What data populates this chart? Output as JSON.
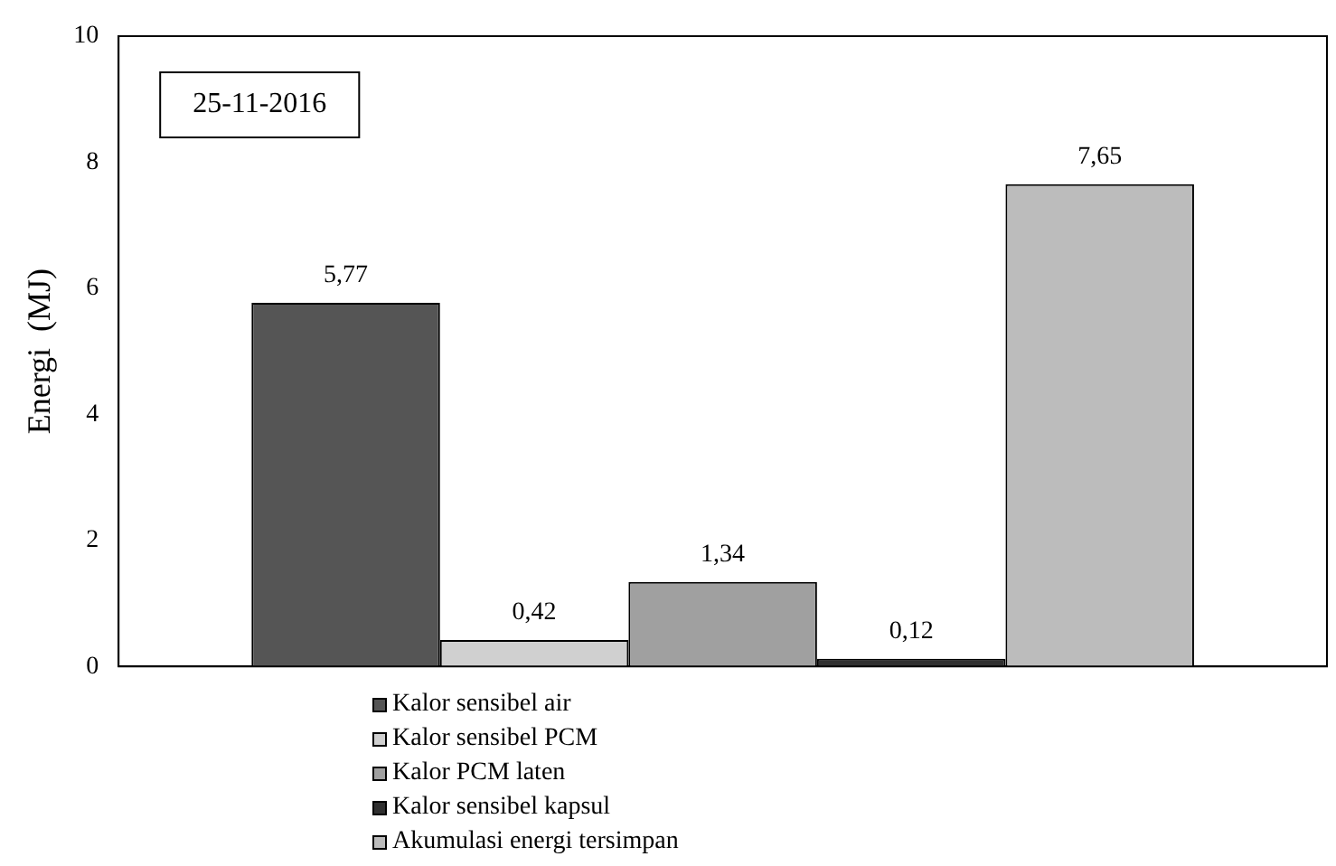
{
  "chart_data": {
    "type": "bar",
    "ylabel": "Energi  (MJ)",
    "categories": [
      null
    ],
    "series": [
      {
        "name": "Kalor sensibel air",
        "color": "#555555",
        "values": [
          5.77
        ],
        "value_labels": [
          "5,77"
        ]
      },
      {
        "name": "Kalor sensibel PCM",
        "color": "#d0d0d0",
        "values": [
          0.42
        ],
        "value_labels": [
          "0,42"
        ]
      },
      {
        "name": "Kalor PCM laten",
        "color": "#a0a0a0",
        "values": [
          1.34
        ],
        "value_labels": [
          "1,34"
        ]
      },
      {
        "name": "Kalor sensibel kapsul",
        "color": "#303030",
        "values": [
          0.12
        ],
        "value_labels": [
          "0,12"
        ]
      },
      {
        "name": "Akumulasi energi tersimpan",
        "color": "#bcbcbc",
        "values": [
          7.65
        ],
        "value_labels": [
          "7,65"
        ]
      }
    ],
    "ylim": [
      0,
      10
    ],
    "yticks": [
      0,
      2,
      4,
      6,
      8,
      10
    ],
    "grid": false,
    "legend": "bottom",
    "annotations": [
      "25-11-2016"
    ]
  }
}
